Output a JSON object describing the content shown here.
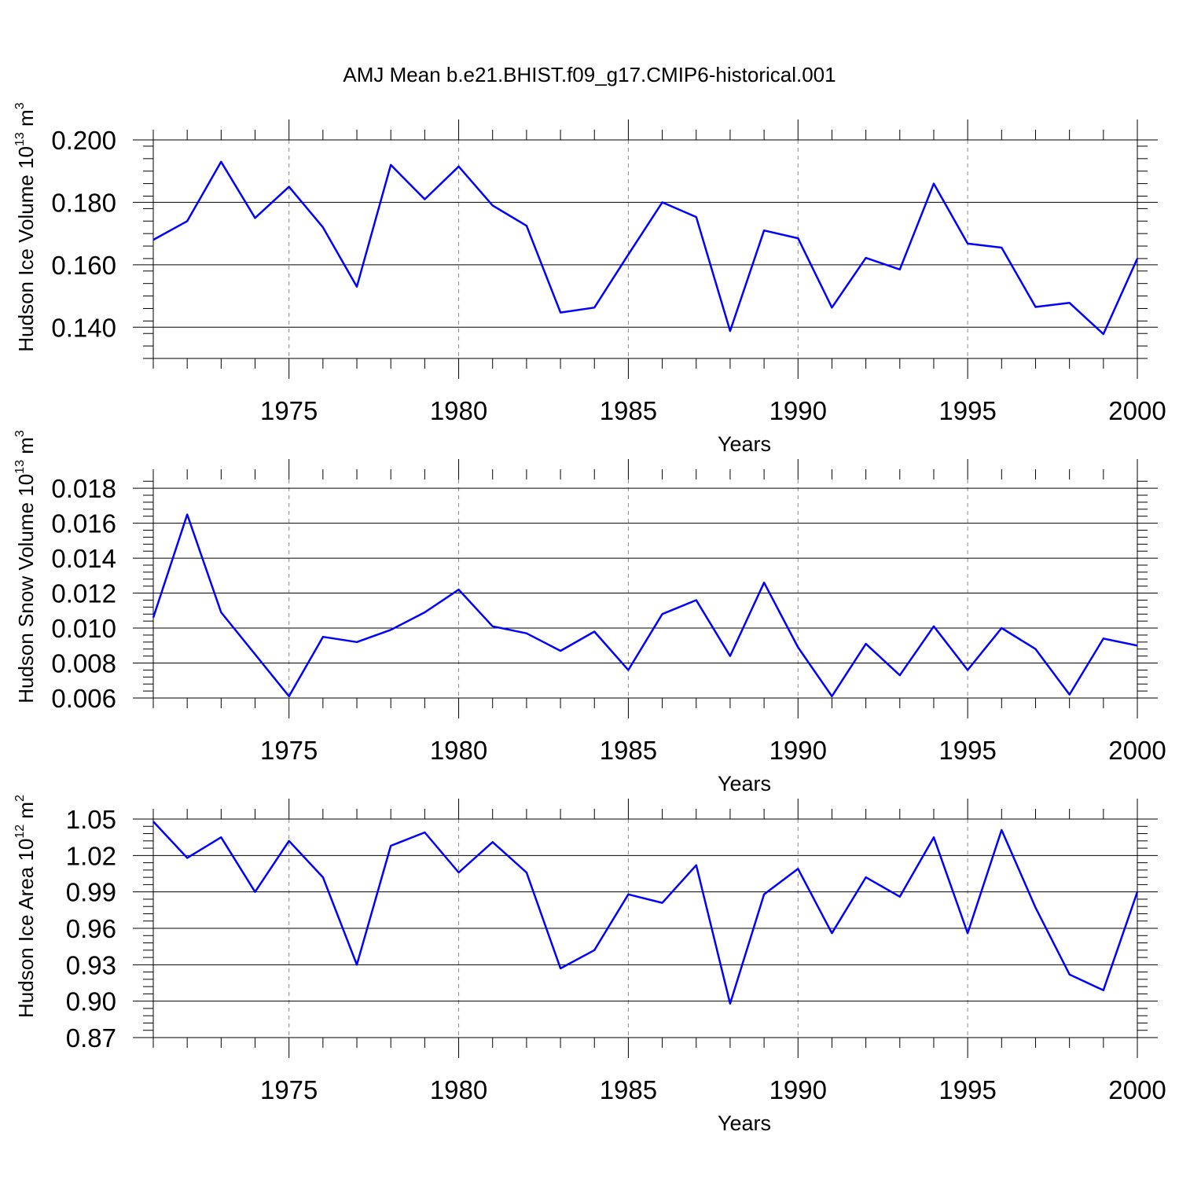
{
  "title": "AMJ Mean b.e21.BHIST.f09_g17.CMIP6-historical.001",
  "chart_data": [
    {
      "type": "line",
      "title": "",
      "xlabel": "Years",
      "ylabel": "Hudson Ice Volume 10",
      "ylabel_sup": "13",
      "ylabel_unit": " m",
      "ylabel_unit_sup": "3",
      "xlim": [
        1971,
        2000
      ],
      "ylim": [
        0.13,
        0.2
      ],
      "xticks": [
        1975,
        1980,
        1985,
        1990,
        1995,
        2000
      ],
      "xtick_labels": [
        "1975",
        "1980",
        "1985",
        "1990",
        "1995",
        "2000"
      ],
      "yticks": [
        0.14,
        0.16,
        0.18,
        0.2
      ],
      "ytick_labels": [
        "0.140",
        "0.160",
        "0.180",
        "0.200"
      ],
      "yminor_step": 0.004,
      "line_color": "#0000ff",
      "x": [
        1971,
        1972,
        1973,
        1974,
        1975,
        1976,
        1977,
        1978,
        1979,
        1980,
        1981,
        1982,
        1983,
        1984,
        1985,
        1986,
        1987,
        1988,
        1989,
        1990,
        1991,
        1992,
        1993,
        1994,
        1995,
        1996,
        1997,
        1998,
        1999,
        2000
      ],
      "values": [
        0.168,
        0.174,
        0.193,
        0.175,
        0.185,
        0.172,
        0.153,
        0.192,
        0.181,
        0.1915,
        0.179,
        0.1725,
        0.1447,
        0.1463,
        0.1633,
        0.18,
        0.1753,
        0.1388,
        0.171,
        0.1685,
        0.1463,
        0.1622,
        0.1585,
        0.186,
        0.1668,
        0.1655,
        0.1465,
        0.1478,
        0.1378,
        0.162
      ]
    },
    {
      "type": "line",
      "title": "",
      "xlabel": "Years",
      "ylabel": "Hudson Snow Volume 10",
      "ylabel_sup": "13",
      "ylabel_unit": " m",
      "ylabel_unit_sup": "3",
      "xlim": [
        1971,
        2000
      ],
      "ylim": [
        0.006,
        0.0185
      ],
      "xticks": [
        1975,
        1980,
        1985,
        1990,
        1995,
        2000
      ],
      "xtick_labels": [
        "1975",
        "1980",
        "1985",
        "1990",
        "1995",
        "2000"
      ],
      "yticks": [
        0.006,
        0.008,
        0.01,
        0.012,
        0.014,
        0.016,
        0.018
      ],
      "ytick_labels": [
        "0.006",
        "0.008",
        "0.010",
        "0.012",
        "0.014",
        "0.016",
        "0.018"
      ],
      "yminor_step": 0.0004,
      "line_color": "#0000ff",
      "x": [
        1971,
        1972,
        1973,
        1974,
        1975,
        1976,
        1977,
        1978,
        1979,
        1980,
        1981,
        1982,
        1983,
        1984,
        1985,
        1986,
        1987,
        1988,
        1989,
        1990,
        1991,
        1992,
        1993,
        1994,
        1995,
        1996,
        1997,
        1998,
        1999,
        2000
      ],
      "values": [
        0.0106,
        0.0165,
        0.0109,
        0.0085,
        0.0061,
        0.0095,
        0.0092,
        0.0099,
        0.0109,
        0.0122,
        0.0101,
        0.0097,
        0.0087,
        0.0098,
        0.0076,
        0.0108,
        0.0116,
        0.0084,
        0.0126,
        0.0089,
        0.0061,
        0.0091,
        0.0073,
        0.0101,
        0.0076,
        0.01,
        0.0088,
        0.0062,
        0.0094,
        0.009
      ]
    },
    {
      "type": "line",
      "title": "",
      "xlabel": "Years",
      "ylabel": "Hudson Ice Area 10",
      "ylabel_sup": "12",
      "ylabel_unit": " m",
      "ylabel_unit_sup": "2",
      "xlim": [
        1971,
        2000
      ],
      "ylim": [
        0.87,
        1.05
      ],
      "xticks": [
        1975,
        1980,
        1985,
        1990,
        1995,
        2000
      ],
      "xtick_labels": [
        "1975",
        "1980",
        "1985",
        "1990",
        "1995",
        "2000"
      ],
      "yticks": [
        0.87,
        0.9,
        0.93,
        0.96,
        0.99,
        1.02,
        1.05
      ],
      "ytick_labels": [
        "0.87",
        "0.90",
        "0.93",
        "0.96",
        "0.99",
        "1.02",
        "1.05"
      ],
      "yminor_step": 0.006,
      "line_color": "#0000ff",
      "x": [
        1971,
        1972,
        1973,
        1974,
        1975,
        1976,
        1977,
        1978,
        1979,
        1980,
        1981,
        1982,
        1983,
        1984,
        1985,
        1986,
        1987,
        1988,
        1989,
        1990,
        1991,
        1992,
        1993,
        1994,
        1995,
        1996,
        1997,
        1998,
        1999,
        2000
      ],
      "values": [
        1.048,
        1.018,
        1.035,
        0.99,
        1.032,
        1.002,
        0.93,
        1.028,
        1.039,
        1.006,
        1.031,
        1.006,
        0.927,
        0.942,
        0.988,
        0.981,
        1.012,
        0.898,
        0.988,
        1.009,
        0.956,
        1.002,
        0.986,
        1.035,
        0.956,
        1.041,
        0.977,
        0.922,
        0.909,
        0.99
      ]
    }
  ]
}
